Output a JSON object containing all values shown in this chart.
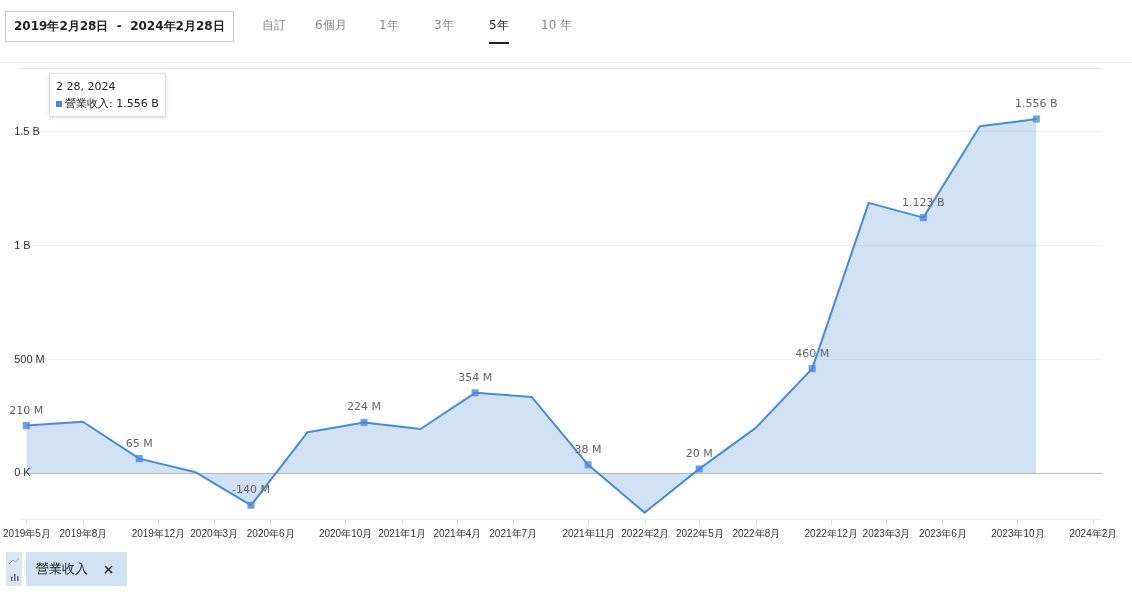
{
  "chart_data": {
    "type": "area",
    "annotations": [
      "2019年2月28日  -  2024年2月28日",
      "自訂",
      "6個月",
      "1年",
      "3年",
      "5年",
      "10 年",
      "2 28, 2024",
      "營業收入: 1.556 B"
    ],
    "x": [
      "2019-04-30",
      "2019-07-31",
      "2019-10-31",
      "2020-01-31",
      "2020-04-30",
      "2020-07-31",
      "2020-10-31",
      "2021-01-31",
      "2021-04-30",
      "2021-07-31",
      "2021-10-31",
      "2022-01-31",
      "2022-04-30",
      "2022-07-31",
      "2022-10-31",
      "2023-01-31",
      "2023-04-30",
      "2023-07-31",
      "2023-10-31"
    ],
    "series": [
      {
        "name": "營業收入",
        "color": "#4a8ad8",
        "values": [
          210000000,
          227000000,
          65000000,
          5000000,
          -140000000,
          181000000,
          224000000,
          195000000,
          354000000,
          336000000,
          38000000,
          -172000000,
          20000000,
          200000000,
          460000000,
          1188000000,
          1123000000,
          1524000000,
          1556000000
        ],
        "value_labels": [
          "210 M",
          null,
          "65 M",
          null,
          "-140 M",
          null,
          "224 M",
          null,
          "354 M",
          null,
          "38 M",
          null,
          "20 M",
          null,
          "460 M",
          null,
          "1.123 B",
          null,
          "1.556 B"
        ]
      }
    ],
    "xlim": [
      "2019-04-20",
      "2024-02-15"
    ],
    "xticks": [
      {
        "value": "2019-05-01",
        "label": "2019年5月"
      },
      {
        "value": "2019-08-01",
        "label": "2019年8月"
      },
      {
        "value": "2019-12-01",
        "label": "2019年12月"
      },
      {
        "value": "2020-03-01",
        "label": "2020年3月"
      },
      {
        "value": "2020-06-01",
        "label": "2020年6月"
      },
      {
        "value": "2020-10-01",
        "label": "2020年10月"
      },
      {
        "value": "2021-01-01",
        "label": "2021年1月"
      },
      {
        "value": "2021-04-01",
        "label": "2021年4月"
      },
      {
        "value": "2021-07-01",
        "label": "2021年7月"
      },
      {
        "value": "2021-11-01",
        "label": "2021年11月"
      },
      {
        "value": "2022-02-01",
        "label": "2022年2月"
      },
      {
        "value": "2022-05-01",
        "label": "2022年5月"
      },
      {
        "value": "2022-08-01",
        "label": "2022年8月"
      },
      {
        "value": "2022-12-01",
        "label": "2022年12月"
      },
      {
        "value": "2023-03-01",
        "label": "2023年3月"
      },
      {
        "value": "2023-06-01",
        "label": "2023年6月"
      },
      {
        "value": "2023-10-01",
        "label": "2023年10月"
      },
      {
        "value": "2024-02-01",
        "label": "2024年2月"
      }
    ],
    "ylim": [
      -200000000,
      1780000000
    ],
    "yticks": [
      {
        "value": 0,
        "label": "0 K"
      },
      {
        "value": 500000000,
        "label": "500 M"
      },
      {
        "value": 1000000000,
        "label": "1 B"
      },
      {
        "value": 1500000000,
        "label": "1.5 B"
      }
    ],
    "grid": "y",
    "legend": "bottom left",
    "marker": "square",
    "line_style": "solid"
  }
}
